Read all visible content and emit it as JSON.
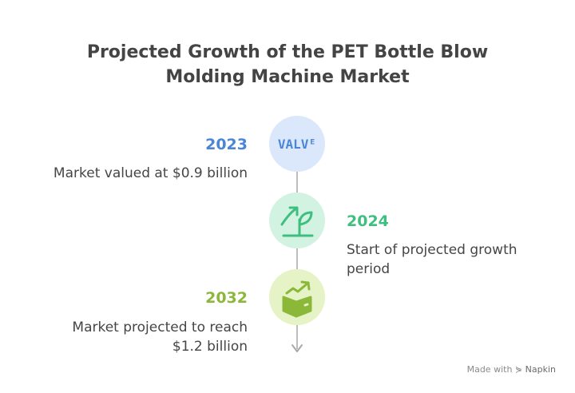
{
  "title": {
    "line1": "Projected Growth of the PET Bottle Blow",
    "line2": "Molding Machine Market"
  },
  "timeline": [
    {
      "year": "2023",
      "description": "Market valued at $0.9 billion",
      "icon": "value-text-icon",
      "icon_text": "VALVᴱ",
      "color": "#4a86d8"
    },
    {
      "year": "2024",
      "description_lines": [
        "Start of projected growth",
        "period"
      ],
      "icon": "sprouting-plant-icon",
      "color": "#3fbf7f"
    },
    {
      "year": "2032",
      "description_lines": [
        "Market projected to reach",
        "$1.2 billion"
      ],
      "icon": "box-with-rising-arrow-icon",
      "color": "#8cb83a"
    }
  ],
  "footer": {
    "made_with": "Made with",
    "brand": "Napkin"
  }
}
